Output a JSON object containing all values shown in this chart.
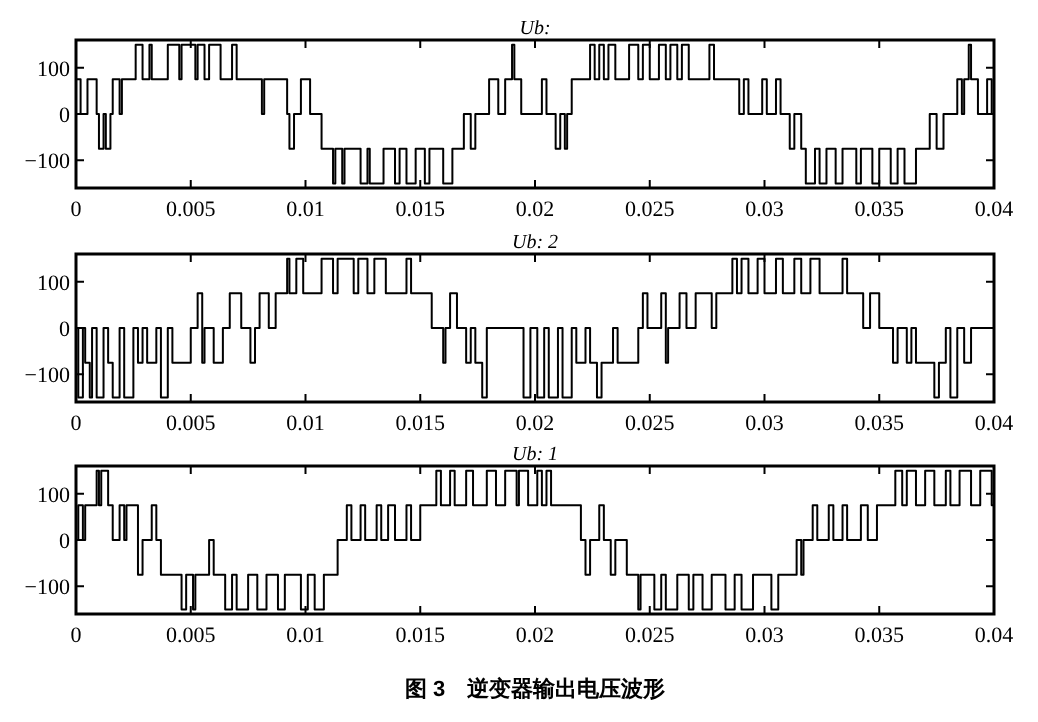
{
  "chart_data": [
    {
      "type": "step",
      "title": "Ub:",
      "xlim": [
        0,
        0.04
      ],
      "ylim": [
        -160,
        160
      ],
      "yticks": [
        -100,
        0,
        100
      ],
      "xticks": [
        0,
        0.005,
        0.01,
        0.015,
        0.02,
        0.025,
        0.03,
        0.035,
        0.04
      ],
      "x": [
        0,
        0.0002,
        0.0005,
        0.0009,
        0.001,
        0.0012,
        0.0013,
        0.0015,
        0.0016,
        0.0019,
        0.002,
        0.0026,
        0.0029,
        0.0032,
        0.0033,
        0.004,
        0.0045,
        0.0046,
        0.0052,
        0.0053,
        0.0056,
        0.0058,
        0.0063,
        0.0068,
        0.007,
        0.0081,
        0.0082,
        0.0092,
        0.0093,
        0.0095,
        0.0098,
        0.0102,
        0.0107,
        0.0112,
        0.0113,
        0.0116,
        0.0117,
        0.0124,
        0.0127,
        0.0128,
        0.0134,
        0.0139,
        0.0141,
        0.0144,
        0.0148,
        0.0152,
        0.0154,
        0.016,
        0.0164,
        0.0169,
        0.0172,
        0.0174,
        0.018,
        0.0184,
        0.0187,
        0.019,
        0.0191,
        0.0194,
        0.0203,
        0.0205,
        0.0209,
        0.0211,
        0.0213,
        0.0214,
        0.0216,
        0.0224,
        0.0226,
        0.0228,
        0.023,
        0.0232,
        0.0235,
        0.0241,
        0.0245,
        0.0247,
        0.025,
        0.0254,
        0.0257,
        0.0259,
        0.0262,
        0.0264,
        0.0267,
        0.0276,
        0.0278,
        0.0289,
        0.0291,
        0.0293,
        0.0299,
        0.0301,
        0.0305,
        0.0307,
        0.0311,
        0.0313,
        0.0316,
        0.0318,
        0.0322,
        0.0324,
        0.0327,
        0.0331,
        0.0334,
        0.034,
        0.0342,
        0.0347,
        0.035,
        0.0355,
        0.0358,
        0.0361,
        0.0366,
        0.0372,
        0.0375,
        0.0378,
        0.0384,
        0.0386,
        0.0387,
        0.0389,
        0.039,
        0.0393,
        0.0397,
        0.0399,
        0.04
      ],
      "series": [
        {
          "color": "#000000",
          "values": [
            75,
            0,
            75,
            0,
            -75,
            0,
            -75,
            0,
            75,
            0,
            75,
            150,
            75,
            150,
            75,
            150,
            75,
            150,
            75,
            150,
            75,
            150,
            75,
            150,
            75,
            0,
            75,
            0,
            -75,
            0,
            75,
            0,
            -75,
            -150,
            -75,
            -150,
            -75,
            -150,
            -75,
            -150,
            -75,
            -150,
            -75,
            -150,
            -75,
            -150,
            -75,
            -150,
            -75,
            0,
            -75,
            0,
            75,
            0,
            75,
            150,
            75,
            0,
            75,
            0,
            -75,
            0,
            -75,
            0,
            75,
            150,
            75,
            150,
            75,
            150,
            75,
            150,
            75,
            150,
            75,
            150,
            75,
            150,
            75,
            150,
            75,
            150,
            75,
            0,
            75,
            0,
            75,
            0,
            75,
            0,
            -75,
            0,
            -75,
            -150,
            -75,
            -150,
            -75,
            -150,
            -75,
            -150,
            -75,
            -150,
            -75,
            -150,
            -75,
            -150,
            -75,
            0,
            -75,
            0,
            75,
            0,
            75,
            150,
            75,
            0,
            75,
            0,
            0
          ]
        }
      ]
    },
    {
      "type": "step",
      "title": "Ub: 2",
      "xlim": [
        0,
        0.04
      ],
      "ylim": [
        -160,
        160
      ],
      "yticks": [
        -100,
        0,
        100
      ],
      "xticks": [
        0,
        0.005,
        0.01,
        0.015,
        0.02,
        0.025,
        0.03,
        0.035,
        0.04
      ],
      "x": [
        0,
        0.0001,
        0.0003,
        0.0004,
        0.0006,
        0.0007,
        0.0009,
        0.0012,
        0.0014,
        0.0016,
        0.0019,
        0.0021,
        0.0025,
        0.0027,
        0.0029,
        0.0031,
        0.0035,
        0.0037,
        0.004,
        0.0042,
        0.005,
        0.0053,
        0.0055,
        0.0056,
        0.006,
        0.0064,
        0.0067,
        0.0072,
        0.0076,
        0.0078,
        0.008,
        0.0084,
        0.0087,
        0.0092,
        0.0093,
        0.0096,
        0.0099,
        0.0107,
        0.0112,
        0.0114,
        0.0121,
        0.0123,
        0.0127,
        0.013,
        0.0135,
        0.0144,
        0.0146,
        0.0155,
        0.016,
        0.0161,
        0.0163,
        0.0166,
        0.017,
        0.0172,
        0.0174,
        0.0177,
        0.0179,
        0.0195,
        0.0198,
        0.0201,
        0.0204,
        0.0206,
        0.021,
        0.0212,
        0.0216,
        0.0218,
        0.0222,
        0.0224,
        0.0227,
        0.0229,
        0.0234,
        0.0236,
        0.0245,
        0.0247,
        0.0249,
        0.0255,
        0.0257,
        0.0258,
        0.0263,
        0.0266,
        0.027,
        0.0277,
        0.0279,
        0.0286,
        0.0288,
        0.029,
        0.0293,
        0.0297,
        0.03,
        0.0305,
        0.0308,
        0.0313,
        0.0316,
        0.032,
        0.0324,
        0.0334,
        0.0336,
        0.0343,
        0.0346,
        0.035,
        0.0356,
        0.0358,
        0.0362,
        0.0364,
        0.0366,
        0.0374,
        0.0376,
        0.0379,
        0.0381,
        0.0384,
        0.0387,
        0.039,
        0.04
      ],
      "series": [
        {
          "color": "#000000",
          "values": [
            0,
            -150,
            0,
            -75,
            -150,
            0,
            -150,
            0,
            -75,
            -150,
            0,
            -150,
            0,
            -75,
            0,
            -75,
            0,
            -150,
            0,
            -75,
            0,
            75,
            -75,
            0,
            -75,
            0,
            75,
            0,
            -75,
            0,
            75,
            0,
            75,
            150,
            75,
            150,
            75,
            150,
            75,
            150,
            75,
            150,
            75,
            150,
            75,
            150,
            75,
            0,
            -75,
            0,
            75,
            0,
            -75,
            0,
            -75,
            -150,
            0,
            -150,
            0,
            -150,
            0,
            -150,
            0,
            -150,
            0,
            -75,
            0,
            -75,
            -150,
            -75,
            0,
            -75,
            0,
            75,
            0,
            75,
            -75,
            0,
            75,
            0,
            75,
            0,
            75,
            150,
            75,
            150,
            75,
            150,
            75,
            150,
            75,
            150,
            75,
            150,
            75,
            150,
            75,
            0,
            75,
            0,
            -75,
            0,
            -75,
            0,
            -75,
            -150,
            -75,
            0,
            -150,
            0,
            -75,
            0,
            0
          ]
        }
      ]
    },
    {
      "type": "step",
      "title": "Ub: 1",
      "xlim": [
        0,
        0.04
      ],
      "ylim": [
        -160,
        160
      ],
      "yticks": [
        -100,
        0,
        100
      ],
      "xticks": [
        0,
        0.005,
        0.01,
        0.015,
        0.02,
        0.025,
        0.03,
        0.035,
        0.04
      ],
      "x": [
        0,
        0.0001,
        0.0003,
        0.0004,
        0.0009,
        0.001,
        0.0011,
        0.0014,
        0.0016,
        0.0019,
        0.0021,
        0.0022,
        0.0027,
        0.0029,
        0.0033,
        0.0035,
        0.0037,
        0.0046,
        0.0048,
        0.0051,
        0.0052,
        0.0058,
        0.006,
        0.0065,
        0.0068,
        0.007,
        0.0075,
        0.0079,
        0.0083,
        0.0088,
        0.0091,
        0.0098,
        0.0101,
        0.0104,
        0.0108,
        0.0114,
        0.0118,
        0.012,
        0.0124,
        0.0126,
        0.0131,
        0.0133,
        0.0136,
        0.0139,
        0.0144,
        0.0146,
        0.015,
        0.0157,
        0.0159,
        0.0163,
        0.0165,
        0.017,
        0.0173,
        0.0179,
        0.0183,
        0.0187,
        0.0192,
        0.0193,
        0.0197,
        0.0201,
        0.0203,
        0.0205,
        0.0207,
        0.022,
        0.0222,
        0.0224,
        0.0228,
        0.023,
        0.0233,
        0.0235,
        0.024,
        0.0245,
        0.0246,
        0.0252,
        0.0255,
        0.0257,
        0.0262,
        0.0267,
        0.0269,
        0.0273,
        0.0277,
        0.0283,
        0.0287,
        0.029,
        0.0295,
        0.0303,
        0.0306,
        0.0314,
        0.0316,
        0.0317,
        0.0321,
        0.0323,
        0.0328,
        0.033,
        0.0334,
        0.0336,
        0.0342,
        0.0345,
        0.0349,
        0.0357,
        0.036,
        0.0362,
        0.0366,
        0.037,
        0.0374,
        0.0379,
        0.0381,
        0.0385,
        0.039,
        0.0394,
        0.0399,
        0.04
      ],
      "series": [
        {
          "color": "#000000",
          "values": [
            0,
            75,
            0,
            75,
            150,
            75,
            150,
            75,
            0,
            75,
            0,
            75,
            -75,
            0,
            75,
            0,
            -75,
            -150,
            -75,
            -150,
            -75,
            0,
            -75,
            -150,
            -75,
            -150,
            -75,
            -150,
            -75,
            -150,
            -75,
            -150,
            -75,
            -150,
            -75,
            0,
            75,
            0,
            75,
            0,
            75,
            0,
            75,
            0,
            75,
            0,
            75,
            150,
            75,
            150,
            75,
            150,
            75,
            150,
            75,
            150,
            75,
            150,
            75,
            150,
            75,
            150,
            75,
            0,
            -75,
            0,
            75,
            0,
            -75,
            0,
            -75,
            -150,
            -75,
            -150,
            -75,
            -150,
            -75,
            -150,
            -75,
            -150,
            -75,
            -150,
            -75,
            -150,
            -75,
            -150,
            -75,
            0,
            -75,
            0,
            75,
            0,
            75,
            0,
            75,
            0,
            75,
            0,
            75,
            150,
            75,
            150,
            75,
            150,
            75,
            150,
            75,
            150,
            75,
            150,
            75,
            75
          ]
        }
      ],
      "annotations": [
        "图 3　逆变器输出电压波形"
      ]
    }
  ]
}
